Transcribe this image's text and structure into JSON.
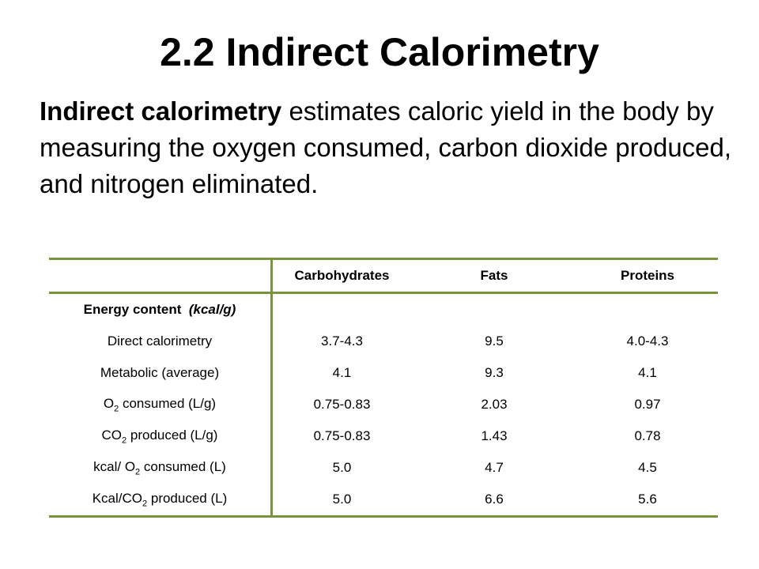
{
  "title": "2.2 Indirect Calorimetry",
  "intro": {
    "bold": "Indirect calorimetry",
    "text": " estimates caloric yield in the body by measuring the oxygen consumed, carbon dioxide produced, and nitrogen eliminated."
  },
  "table": {
    "header": [
      "Carbohydrates",
      "Fats",
      "Proteins"
    ],
    "section": {
      "label": "Energy content",
      "unit": "(kcal/g)"
    },
    "rows": [
      {
        "label": [
          "Direct calorimetry"
        ],
        "values": [
          "3.7-4.3",
          "9.5",
          "4.0-4.3"
        ]
      },
      {
        "label": [
          "Metabolic (average)"
        ],
        "values": [
          "4.1",
          "9.3",
          "4.1"
        ]
      },
      {
        "label": [
          "O",
          "2",
          " consumed (L/g)"
        ],
        "values": [
          "0.75-0.83",
          "2.03",
          "0.97"
        ]
      },
      {
        "label": [
          "CO",
          "2",
          " produced (L/g)"
        ],
        "values": [
          "0.75-0.83",
          "1.43",
          "0.78"
        ]
      },
      {
        "label": [
          "kcal/ O",
          "2",
          " consumed (L)"
        ],
        "values": [
          "5.0",
          "4.7",
          "4.5"
        ]
      },
      {
        "label": [
          "Kcal/CO",
          "2",
          " produced (L)"
        ],
        "values": [
          "5.0",
          "6.6",
          "5.6"
        ]
      }
    ]
  }
}
